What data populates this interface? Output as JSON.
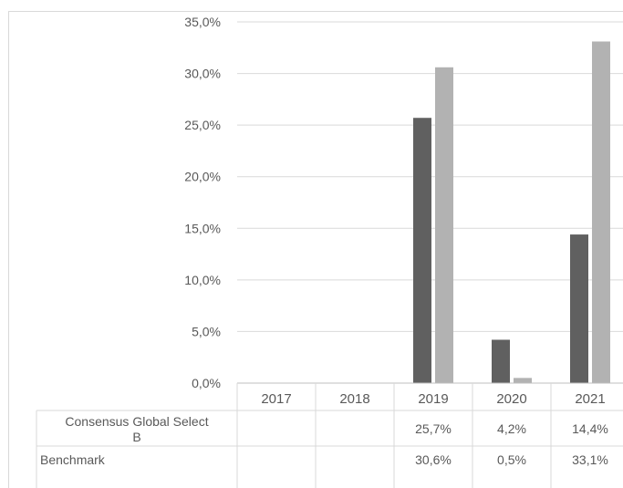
{
  "chart_data": {
    "type": "bar",
    "categories": [
      "2017",
      "2018",
      "2019",
      "2020",
      "2021"
    ],
    "series": [
      {
        "name": "Consensus Global Select B",
        "values": [
          null,
          null,
          25.7,
          4.2,
          14.4
        ],
        "labels": [
          "",
          "",
          "25,7%",
          "4,2%",
          "14,4%"
        ],
        "color": "#606060"
      },
      {
        "name": "Benchmark",
        "values": [
          null,
          null,
          30.6,
          0.5,
          33.1
        ],
        "labels": [
          "",
          "",
          "30,6%",
          "0,5%",
          "33,1%"
        ],
        "color": "#b2b2b2"
      }
    ],
    "yticks": [
      "0,0%",
      "5,0%",
      "10,0%",
      "15,0%",
      "20,0%",
      "25,0%",
      "30,0%",
      "35,0%"
    ],
    "ylim": [
      0,
      35
    ],
    "grid": true,
    "legend": "data-table"
  }
}
